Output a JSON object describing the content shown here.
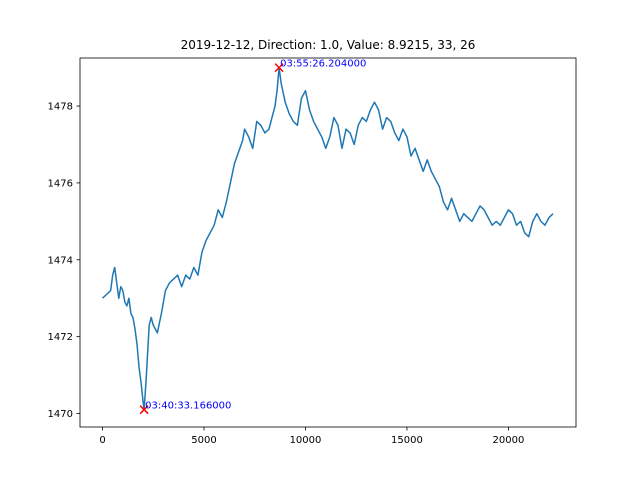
{
  "chart_data": {
    "type": "line",
    "title": "2019-12-12, Direction: 1.0, Value: 8.9215, 33, 26",
    "xlabel": "",
    "ylabel": "",
    "xlim": [
      -1110,
      23330
    ],
    "ylim": [
      1469.65,
      1479.25
    ],
    "x_ticks": [
      0,
      5000,
      10000,
      15000,
      20000
    ],
    "y_ticks": [
      1470,
      1472,
      1474,
      1476,
      1478
    ],
    "grid": false,
    "line_color": "#1f77b4",
    "series": [
      {
        "points": [
          [
            0,
            1473.0
          ],
          [
            200,
            1473.1
          ],
          [
            400,
            1473.2
          ],
          [
            500,
            1473.6
          ],
          [
            600,
            1473.8
          ],
          [
            700,
            1473.4
          ],
          [
            800,
            1473.0
          ],
          [
            900,
            1473.3
          ],
          [
            1000,
            1473.2
          ],
          [
            1100,
            1472.9
          ],
          [
            1200,
            1472.8
          ],
          [
            1300,
            1473.0
          ],
          [
            1400,
            1472.6
          ],
          [
            1500,
            1472.5
          ],
          [
            1600,
            1472.2
          ],
          [
            1700,
            1471.8
          ],
          [
            1800,
            1471.2
          ],
          [
            1900,
            1470.8
          ],
          [
            2000,
            1470.3
          ],
          [
            2050,
            1470.1
          ],
          [
            2150,
            1470.9
          ],
          [
            2300,
            1472.3
          ],
          [
            2400,
            1472.5
          ],
          [
            2500,
            1472.3
          ],
          [
            2700,
            1472.1
          ],
          [
            2900,
            1472.6
          ],
          [
            3100,
            1473.2
          ],
          [
            3300,
            1473.4
          ],
          [
            3500,
            1473.5
          ],
          [
            3700,
            1473.6
          ],
          [
            3900,
            1473.3
          ],
          [
            4100,
            1473.6
          ],
          [
            4300,
            1473.5
          ],
          [
            4500,
            1473.8
          ],
          [
            4700,
            1473.6
          ],
          [
            4900,
            1474.2
          ],
          [
            5100,
            1474.5
          ],
          [
            5300,
            1474.7
          ],
          [
            5500,
            1474.9
          ],
          [
            5700,
            1475.3
          ],
          [
            5900,
            1475.1
          ],
          [
            6100,
            1475.5
          ],
          [
            6300,
            1476.0
          ],
          [
            6500,
            1476.5
          ],
          [
            6700,
            1476.8
          ],
          [
            6900,
            1477.1
          ],
          [
            7000,
            1477.4
          ],
          [
            7200,
            1477.2
          ],
          [
            7400,
            1476.9
          ],
          [
            7600,
            1477.6
          ],
          [
            7800,
            1477.5
          ],
          [
            8000,
            1477.3
          ],
          [
            8200,
            1477.4
          ],
          [
            8400,
            1477.8
          ],
          [
            8500,
            1478.0
          ],
          [
            8600,
            1478.4
          ],
          [
            8700,
            1479.0
          ],
          [
            8800,
            1478.6
          ],
          [
            9000,
            1478.1
          ],
          [
            9200,
            1477.8
          ],
          [
            9400,
            1477.6
          ],
          [
            9600,
            1477.5
          ],
          [
            9800,
            1478.2
          ],
          [
            10000,
            1478.4
          ],
          [
            10200,
            1477.9
          ],
          [
            10400,
            1477.6
          ],
          [
            10600,
            1477.4
          ],
          [
            10800,
            1477.2
          ],
          [
            11000,
            1476.9
          ],
          [
            11200,
            1477.2
          ],
          [
            11400,
            1477.7
          ],
          [
            11600,
            1477.5
          ],
          [
            11800,
            1476.9
          ],
          [
            12000,
            1477.4
          ],
          [
            12200,
            1477.3
          ],
          [
            12400,
            1477.0
          ],
          [
            12600,
            1477.5
          ],
          [
            12800,
            1477.7
          ],
          [
            13000,
            1477.6
          ],
          [
            13200,
            1477.9
          ],
          [
            13400,
            1478.1
          ],
          [
            13600,
            1477.9
          ],
          [
            13800,
            1477.4
          ],
          [
            14000,
            1477.7
          ],
          [
            14200,
            1477.6
          ],
          [
            14400,
            1477.3
          ],
          [
            14600,
            1477.1
          ],
          [
            14800,
            1477.4
          ],
          [
            15000,
            1477.2
          ],
          [
            15200,
            1476.7
          ],
          [
            15400,
            1476.9
          ],
          [
            15600,
            1476.6
          ],
          [
            15800,
            1476.3
          ],
          [
            16000,
            1476.6
          ],
          [
            16200,
            1476.3
          ],
          [
            16400,
            1476.1
          ],
          [
            16600,
            1475.9
          ],
          [
            16800,
            1475.5
          ],
          [
            17000,
            1475.3
          ],
          [
            17200,
            1475.6
          ],
          [
            17400,
            1475.3
          ],
          [
            17600,
            1475.0
          ],
          [
            17800,
            1475.2
          ],
          [
            18000,
            1475.1
          ],
          [
            18200,
            1475.0
          ],
          [
            18400,
            1475.2
          ],
          [
            18600,
            1475.4
          ],
          [
            18800,
            1475.3
          ],
          [
            19000,
            1475.1
          ],
          [
            19200,
            1474.9
          ],
          [
            19400,
            1475.0
          ],
          [
            19600,
            1474.9
          ],
          [
            19800,
            1475.1
          ],
          [
            20000,
            1475.3
          ],
          [
            20200,
            1475.2
          ],
          [
            20400,
            1474.9
          ],
          [
            20600,
            1475.0
          ],
          [
            20800,
            1474.7
          ],
          [
            21000,
            1474.6
          ],
          [
            21200,
            1475.0
          ],
          [
            21400,
            1475.2
          ],
          [
            21600,
            1475.0
          ],
          [
            21800,
            1474.9
          ],
          [
            22000,
            1475.1
          ],
          [
            22200,
            1475.2
          ]
        ]
      }
    ],
    "markers": [
      {
        "x": 2050,
        "y": 1470.1,
        "label": "03:40:33.166000",
        "color": "#ff0000"
      },
      {
        "x": 8700,
        "y": 1479.0,
        "label": "03:55:26.204000",
        "color": "#ff0000"
      }
    ]
  }
}
